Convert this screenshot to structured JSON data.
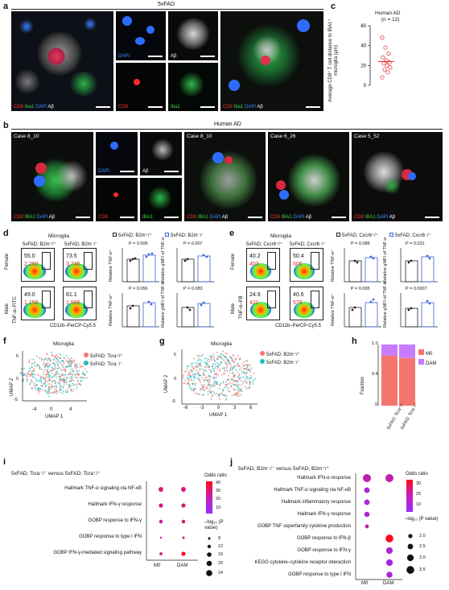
{
  "panels": {
    "a": "a",
    "b": "b",
    "c": "c",
    "d": "d",
    "e": "e",
    "f": "f",
    "g": "g",
    "h": "h",
    "i": "i",
    "j": "j"
  },
  "a": {
    "header": "5xFAD",
    "img1_caption": [
      "CD8",
      "Iba1",
      "DAPI",
      "Aβ"
    ],
    "dapi": "DAPI",
    "cd8": "CD8",
    "ab": "Aβ",
    "iba1": "Iba1",
    "img4_caption": [
      "CD8",
      "Iba1",
      "DAPI",
      "Aβ"
    ]
  },
  "c": {
    "title": "Human AD",
    "n": "(n = 12)",
    "ylabel": "Average CD8⁺ T cell distance to IBA1⁺ microglia (μm)",
    "ticks": [
      "0",
      "20",
      "40",
      "60"
    ]
  },
  "b": {
    "header": "Human AD",
    "case1": "Case 8_10",
    "case2": "Case 8_10",
    "case3": "Case 6_26",
    "case4": "Case 5_52",
    "caption": [
      "CD8",
      "IBA1",
      "DAPI",
      "Aβ"
    ],
    "dapi": "DAPI",
    "ab": "Aβ",
    "cd8": "CD8",
    "iba1": "IBA1"
  },
  "d": {
    "title": "Microglia",
    "col1": "5xFAD; B2m⁺/⁺",
    "col2": "5xFAD; B2m⁻/⁻",
    "legend1": "5xFAD; B2m⁺/⁺",
    "legend2": "5xFAD; B2m⁻/⁻",
    "row_female": "Female",
    "row_male": "Male",
    "yaxis": "TNF-α–FITC",
    "xaxis": "CD11b–PerCP-Cy5.5",
    "gates": [
      {
        "pct": "55.0",
        "count": "2,260"
      },
      {
        "pct": "73.5",
        "count": "3,746"
      },
      {
        "pct": "49.0",
        "count": "1,158"
      },
      {
        "pct": "61.1",
        "count": "1,586"
      }
    ],
    "bar_ylabels": [
      "Relative TNF-α⁺",
      "Relative gMFI of TNF-α",
      "Relative TNF-α⁺",
      "Relative gMFI of TNF-α"
    ],
    "pvalues": [
      "P = 0.006",
      "P = 0.007",
      "P = 0.056",
      "P = 0.083"
    ]
  },
  "e": {
    "title": "Microglia",
    "col1": "5xFAD; Cxcr6⁺/⁺",
    "col2": "5xFAD; Cxcr6⁻/⁻",
    "legend1": "5xFAD; Cxcr6⁺/⁺",
    "legend2": "5xFAD; Cxcr6⁻/⁻",
    "row_female": "Female",
    "row_male": "Male",
    "yaxis": "TNF-α–PB",
    "xaxis": "CD11b–PerCP-Cy5.5",
    "gates": [
      {
        "pct": "40.2",
        "count": "403"
      },
      {
        "pct": "50.4",
        "count": "506"
      },
      {
        "pct": "24.9",
        "count": "421"
      },
      {
        "pct": "40.6",
        "count": "579"
      }
    ],
    "bar_ylabels": [
      "Relative TNF-α⁺",
      "Relative gMFI of TNF-α",
      "Relative TNF-α⁺",
      "Relative gMFI of TNF-α"
    ],
    "pvalues": [
      "P = 0.086",
      "P = 0.031",
      "P = 0.005",
      "P = 0.0007"
    ]
  },
  "f": {
    "title": "Microglia",
    "legend1": "5xFAD; Tcra⁺/⁺",
    "legend2": "5xFAD; Tcra⁻/⁻",
    "xlabel": "UMAP 1",
    "ylabel": "UMAP 2",
    "xticks": [
      "-4",
      "0",
      "4"
    ],
    "yticks": [
      "-5",
      "0",
      "5"
    ]
  },
  "g": {
    "title": "Microglia",
    "legend1": "5xFAD; B2m⁺/⁺",
    "legend2": "5xFAD; B2m⁻/⁻",
    "xlabel": "UMAP 1",
    "ylabel": "UMAP 2",
    "xticks": [
      "-6",
      "-3",
      "0",
      "3",
      "6"
    ],
    "yticks": [
      "-5",
      "0",
      "5"
    ]
  },
  "h": {
    "ylabel": "Fraction",
    "legend": [
      "M0",
      "DAM"
    ],
    "xcats": [
      "5xFAD; Tcra⁺/⁺",
      "5xFAD; Tcra⁻/⁻"
    ],
    "yticks": [
      "0",
      "0.5",
      "1.0"
    ]
  },
  "i": {
    "title": "5xFAD; Tcra⁻/⁻ versus 5xFAD; Tcra⁺/⁺",
    "terms": [
      "Hallmark TNF-α signaling via NF-κB",
      "Hallmark IFN-γ response",
      "GOBP response to IFN-γ",
      "GOBP response to type I IFN",
      "GOBP IFN-γ-mediated signaling pathway"
    ],
    "xcats": [
      "M0",
      "DAM"
    ],
    "or_title": "Odds ratio",
    "or_ticks": [
      "40",
      "30",
      "20",
      "10"
    ],
    "size_title": "–log₁₀ (P value)",
    "size_ticks": [
      "8",
      "12",
      "16",
      "20",
      "24"
    ]
  },
  "j": {
    "title": "5xFAD; B2m⁻/⁻ versus 5xFAD; B2m⁺/⁺",
    "terms": [
      "Hallmark IFN-α response",
      "Hallmark TNF-α signaling via NF-κB",
      "Hallmark inflammatory response",
      "Hallmark IFN-γ response",
      "GOBP TNF superfamily cytokine production",
      "GOBP response to IFN-β",
      "GOBP response to IFN-γ",
      "KEGG cytokine–cytokine receptor interaction",
      "GOBP response to type I IFN"
    ],
    "xcats": [
      "M0",
      "DAM"
    ],
    "or_title": "Odds ratio",
    "or_ticks": [
      "30",
      "20",
      "10"
    ],
    "size_title": "–log₁₀ (P value)",
    "size_ticks": [
      "2.0",
      "2.5",
      "3.0",
      "3.5"
    ]
  },
  "chart_data": [
    {
      "panel": "c",
      "type": "scatter",
      "title": "Human AD (n = 12)",
      "ylabel": "Average CD8⁺ T cell distance to IBA1⁺ microglia (μm)",
      "ylim": [
        0,
        60
      ],
      "values": [
        48,
        38,
        32,
        28,
        25,
        23,
        22,
        20,
        18,
        16,
        13,
        8
      ],
      "mean": 24
    },
    {
      "panel": "h",
      "type": "bar",
      "stacked": true,
      "categories": [
        "5xFAD; Tcra⁺/⁺",
        "5xFAD; Tcra⁻/⁻"
      ],
      "series": [
        {
          "name": "M0",
          "values": [
            0.82,
            0.78
          ]
        },
        {
          "name": "DAM",
          "values": [
            0.18,
            0.22
          ]
        }
      ],
      "ylim": [
        0,
        1.0
      ],
      "colors": {
        "M0": "#f4766d",
        "DAM": "#c77cff"
      }
    },
    {
      "panel": "i",
      "type": "scatter",
      "categories": [
        "M0",
        "DAM"
      ],
      "rows": [
        {
          "term": "Hallmark TNF-α signaling via NF-κB",
          "M0": {
            "or": 30,
            "logp": 18
          },
          "DAM": {
            "or": 30,
            "logp": 18
          }
        },
        {
          "term": "Hallmark IFN-γ response",
          "M0": {
            "or": 28,
            "logp": 16
          },
          "DAM": {
            "or": 30,
            "logp": 16
          }
        },
        {
          "term": "GOBP response to IFN-γ",
          "M0": {
            "or": 26,
            "logp": 14
          },
          "DAM": {
            "or": 30,
            "logp": 14
          }
        },
        {
          "term": "GOBP response to type I IFN",
          "M0": {
            "or": 20,
            "logp": 8
          },
          "DAM": {
            "or": 25,
            "logp": 10
          }
        },
        {
          "term": "GOBP IFN-γ-mediated signaling pathway",
          "M0": {
            "or": 28,
            "logp": 12
          },
          "DAM": {
            "or": 42,
            "logp": 16
          }
        }
      ]
    },
    {
      "panel": "j",
      "type": "scatter",
      "categories": [
        "M0",
        "DAM"
      ],
      "rows": [
        {
          "term": "Hallmark IFN-α response",
          "M0": {
            "or": 20,
            "logp": 3.5
          },
          "DAM": {
            "or": 20,
            "logp": 3.5
          }
        },
        {
          "term": "Hallmark TNF-α signaling via NF-κB",
          "M0": {
            "or": 15,
            "logp": 2.6
          }
        },
        {
          "term": "Hallmark inflammatory response",
          "M0": {
            "or": 15,
            "logp": 2.6
          }
        },
        {
          "term": "Hallmark IFN-γ response",
          "M0": {
            "or": 15,
            "logp": 2.5
          }
        },
        {
          "term": "GOBP TNF superfamily cytokine production",
          "M0": {
            "or": 20,
            "logp": 2.0
          }
        },
        {
          "term": "GOBP response to IFN-β",
          "DAM": {
            "or": 38,
            "logp": 3.4
          }
        },
        {
          "term": "GOBP response to IFN-γ",
          "DAM": {
            "or": 15,
            "logp": 3.0
          }
        },
        {
          "term": "KEGG cytokine–cytokine receptor interaction",
          "DAM": {
            "or": 14,
            "logp": 3.0
          }
        },
        {
          "term": "GOBP response to type I IFN",
          "DAM": {
            "or": 15,
            "logp": 2.8
          }
        }
      ]
    }
  ]
}
